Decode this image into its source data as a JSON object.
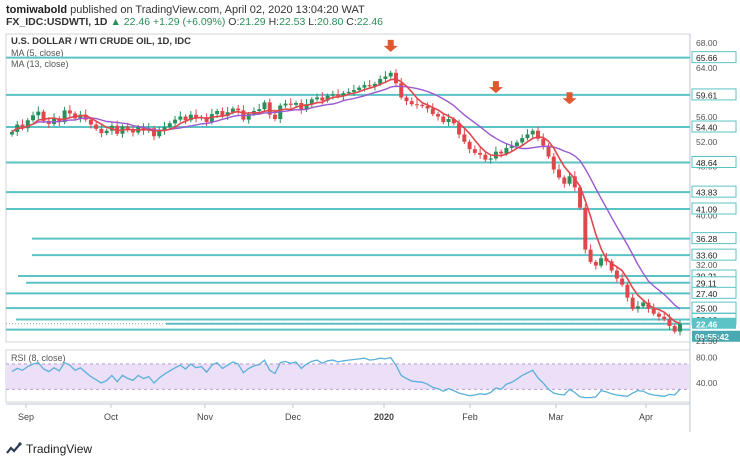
{
  "header": {
    "author": "tomiwabold",
    "published_text": "published on TradingView.com, April 02, 2020 13:04:20 WAT",
    "symbol": "FX_IDC:USDWTI, 1D",
    "ohlc_prefix": "▲",
    "last": "22.46",
    "change": "+1.29 (+6.09%)",
    "o_label": "O:",
    "o": "21.29",
    "h_label": "H:",
    "h": "22.53",
    "l_label": "L:",
    "l": "20.80",
    "c_label": "C:",
    "c": "22.46"
  },
  "footer": {
    "brand": "TradingView"
  },
  "colors": {
    "up": "#2a8f5a",
    "down": "#e0474c",
    "ma5": "#e0474c",
    "ma13": "#9b59d0",
    "hline": "#5bc3c6",
    "rsi": "#5bb0d9",
    "rsi_band": "#ece0f9",
    "axis_bg": "#ffffff"
  },
  "chart_data": {
    "type": "candlestick",
    "title": "U.S. DOLLAR / WTI CRUDE OIL, 1D, IDC",
    "legend": [
      "MA (5, close)",
      "MA (13, close)"
    ],
    "x_ticks": [
      "Sep",
      "Oct",
      "Nov",
      "Dec",
      "2020",
      "Feb",
      "Mar",
      "Apr"
    ],
    "x_tick_bold": "2020",
    "y_ticks": [
      "68.00",
      "64.00",
      "60.00",
      "56.00",
      "52.00",
      "48.00",
      "44.00",
      "40.00",
      "36.00",
      "32.00",
      "28.00",
      "24.00"
    ],
    "ylim": [
      19.5,
      69.5
    ],
    "price_labels": [
      {
        "value": 65.66,
        "text": "65.66"
      },
      {
        "value": 59.61,
        "text": "59.61"
      },
      {
        "value": 54.4,
        "text": "54.40"
      },
      {
        "value": 48.64,
        "text": "48.64"
      },
      {
        "value": 43.83,
        "text": "43.83"
      },
      {
        "value": 41.09,
        "text": "41.09"
      },
      {
        "value": 36.28,
        "text": "36.28"
      },
      {
        "value": 33.6,
        "text": "33.60"
      },
      {
        "value": 30.21,
        "text": "30.21"
      },
      {
        "value": 29.11,
        "text": "29.11"
      },
      {
        "value": 27.4,
        "text": "27.40"
      },
      {
        "value": 25.0,
        "text": "25.00"
      },
      {
        "value": 23.16,
        "text": "23.16"
      }
    ],
    "current_price": {
      "value": 22.46,
      "text": "22.46"
    },
    "time_label": {
      "text": "09:55:42"
    },
    "partial_label": "21.50",
    "support_resistance": [
      65.66,
      59.61,
      54.4,
      48.64,
      43.83,
      41.09,
      36.28,
      33.6,
      30.21,
      29.11,
      27.4,
      25.0,
      23.16,
      22.46,
      21.5
    ],
    "closes": [
      53.6,
      54.8,
      54.2,
      55.5,
      56.3,
      56.9,
      55.4,
      54.9,
      55.8,
      55.2,
      57.1,
      56.6,
      55.8,
      56.4,
      55.6,
      54.8,
      54.1,
      53.4,
      53.8,
      54.6,
      53.3,
      54.5,
      53.9,
      53.5,
      54.4,
      53.8,
      54.2,
      52.9,
      53.8,
      54.4,
      55.0,
      55.6,
      56.1,
      55.5,
      56.4,
      55.8,
      56.0,
      55.2,
      56.5,
      57.0,
      56.2,
      56.8,
      57.4,
      57.1,
      55.6,
      56.5,
      57.0,
      57.3,
      58.4,
      56.4,
      55.7,
      57.9,
      58.2,
      58.0,
      58.3,
      57.2,
      58.1,
      58.9,
      59.2,
      58.7,
      59.5,
      59.7,
      59.4,
      59.9,
      60.1,
      60.4,
      60.8,
      61.2,
      61.0,
      61.4,
      62.2,
      62.6,
      63.2,
      61.5,
      59.2,
      58.6,
      58.1,
      58.0,
      57.8,
      57.4,
      56.5,
      56.1,
      55.2,
      55.7,
      55.0,
      53.2,
      52.0,
      50.8,
      50.2,
      49.9,
      49.1,
      49.3,
      50.4,
      50.1,
      51.0,
      51.3,
      51.9,
      52.6,
      53.2,
      53.8,
      52.5,
      51.4,
      49.6,
      47.5,
      46.2,
      45.2,
      46.4,
      44.6,
      41.3,
      34.5,
      32.5,
      31.9,
      33.1,
      32.6,
      31.1,
      29.8,
      28.8,
      26.7,
      24.9,
      25.3,
      25.9,
      24.9,
      24.1,
      23.6,
      23.2,
      22.1,
      21.2,
      22.46
    ],
    "rsi": {
      "label": "RSI (8, close)",
      "y_ticks": [
        "80.00",
        "40.00"
      ],
      "ylim": [
        10,
        92
      ],
      "band": [
        30,
        70
      ],
      "values": [
        58,
        63,
        60,
        66,
        70,
        72,
        62,
        58,
        64,
        59,
        72,
        68,
        60,
        64,
        57,
        50,
        45,
        40,
        44,
        52,
        42,
        52,
        47,
        44,
        52,
        47,
        50,
        40,
        48,
        54,
        59,
        64,
        68,
        62,
        70,
        64,
        66,
        57,
        68,
        72,
        63,
        68,
        73,
        70,
        56,
        63,
        67,
        69,
        76,
        60,
        55,
        72,
        74,
        71,
        73,
        63,
        70,
        74,
        76,
        71,
        75,
        76,
        73,
        75,
        76,
        77,
        78,
        79,
        76,
        77,
        79,
        78,
        80,
        68,
        52,
        47,
        43,
        42,
        41,
        38,
        33,
        31,
        27,
        31,
        28,
        24,
        22,
        20,
        21,
        23,
        22,
        25,
        32,
        30,
        38,
        41,
        46,
        52,
        56,
        60,
        48,
        40,
        30,
        24,
        22,
        21,
        30,
        25,
        18,
        17,
        17,
        18,
        28,
        26,
        23,
        21,
        20,
        19,
        24,
        28,
        27,
        23,
        21,
        20,
        19,
        22,
        21,
        30
      ]
    },
    "arrows": [
      {
        "index": 72,
        "value": 66.6
      },
      {
        "index": 92,
        "value": 59.9
      },
      {
        "index": 106,
        "value": 58.1
      }
    ]
  }
}
